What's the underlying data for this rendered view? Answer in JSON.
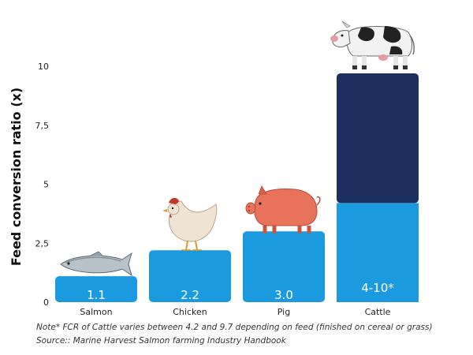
{
  "chart_data": {
    "type": "bar",
    "ylabel": "Feed conversion ratio (x)",
    "xlabel": "",
    "ylim": [
      0,
      10
    ],
    "yticks": [
      0,
      2.5,
      5,
      7.5,
      10
    ],
    "ytick_labels": [
      "0",
      "2,5",
      "5",
      "7,5",
      "10"
    ],
    "grid": false,
    "categories": [
      "Salmon",
      "Chicken",
      "Pig",
      "Cattle"
    ],
    "values": [
      1.1,
      2.2,
      3.0,
      4.2
    ],
    "range_high": [
      null,
      null,
      null,
      9.7
    ],
    "value_labels": [
      "1.1",
      "2.2",
      "3.0",
      "4-10*"
    ],
    "colors": {
      "bar": "#1b9ae0",
      "range": "#1c2f5e"
    },
    "icons": [
      "fish-icon",
      "chicken-icon",
      "pig-icon",
      "cow-icon"
    ]
  },
  "note": "Note* FCR of Cattle varies between  4.2 and 9.7 depending on feed (finished on cereal or grass)",
  "source": "Source:: Marine Harvest Salmon farming Industry Handbook"
}
